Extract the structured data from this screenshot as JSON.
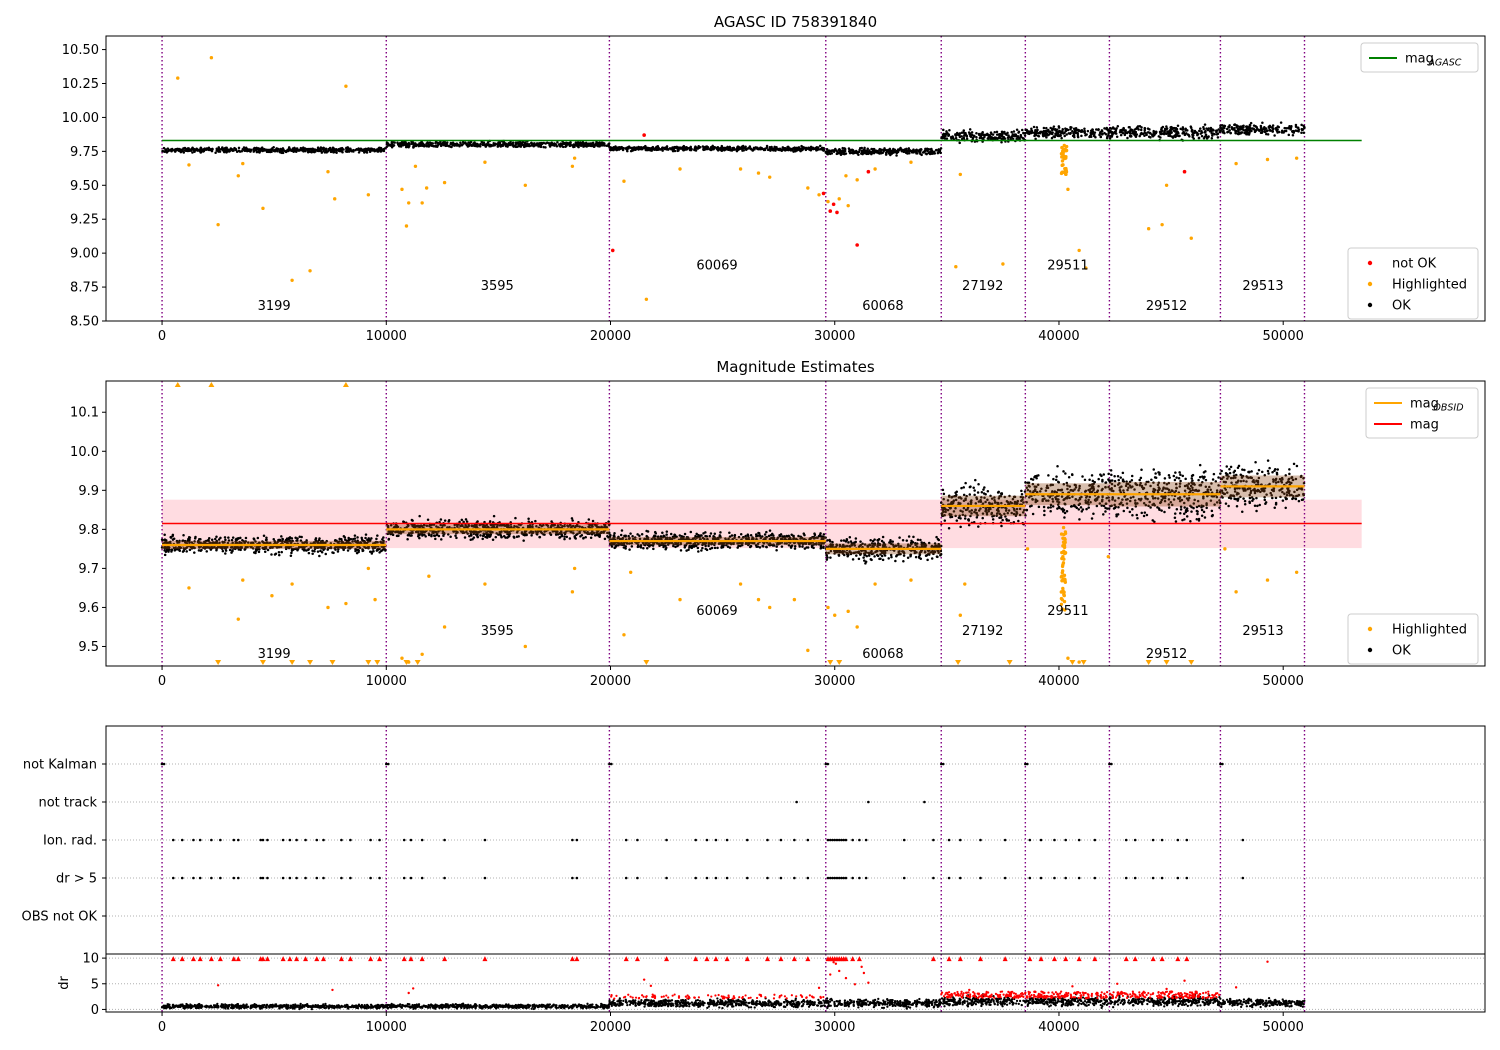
{
  "figure": {
    "colors": {
      "ok": "#000000",
      "highlighted": "#FFA500",
      "not_ok": "#FF0000",
      "agasc_line": "#008000",
      "obsid_line": "#FFA500",
      "mag_line": "#FF0000",
      "obs_boundary": "#800080",
      "band": "#FFC0C8"
    }
  },
  "chart_data": [
    {
      "id": "panel1",
      "type": "scatter",
      "title": "AGASC ID 758391840",
      "xlim": [
        -2500,
        59000
      ],
      "ylim": [
        8.5,
        10.6
      ],
      "xticks": [
        0,
        10000,
        20000,
        30000,
        40000,
        50000
      ],
      "yticks": [
        8.5,
        8.75,
        9.0,
        9.25,
        9.5,
        9.75,
        10.0,
        10.25,
        10.5
      ],
      "obs_boundaries": [
        0,
        10000,
        19950,
        29600,
        34750,
        38500,
        42250,
        47200,
        50950
      ],
      "obs_segments": [
        {
          "obsid": "3199",
          "x0": 0,
          "x1": 10000,
          "mag": 9.76
        },
        {
          "obsid": "3595",
          "x0": 10000,
          "x1": 19950,
          "mag": 9.8
        },
        {
          "obsid": "60069",
          "x0": 19950,
          "x1": 29600,
          "mag": 9.77
        },
        {
          "obsid": "60068",
          "x0": 29600,
          "x1": 34750,
          "mag": 9.75
        },
        {
          "obsid": "27192",
          "x0": 34750,
          "x1": 38500,
          "mag": 9.86
        },
        {
          "obsid": "29511",
          "x0": 38500,
          "x1": 42250,
          "mag": 9.89
        },
        {
          "obsid": "29512",
          "x0": 42250,
          "x1": 47200,
          "mag": 9.89
        },
        {
          "obsid": "29513",
          "x0": 47200,
          "x1": 50950,
          "mag": 9.91
        }
      ],
      "obs_labels": [
        {
          "text": "3199",
          "x": 5000,
          "y": 8.58
        },
        {
          "text": "3595",
          "x": 14950,
          "y": 8.73
        },
        {
          "text": "60069",
          "x": 24750,
          "y": 8.88
        },
        {
          "text": "60068",
          "x": 32150,
          "y": 8.58
        },
        {
          "text": "27192",
          "x": 36600,
          "y": 8.73
        },
        {
          "text": "29511",
          "x": 40400,
          "y": 8.88
        },
        {
          "text": "29512",
          "x": 44800,
          "y": 8.58
        },
        {
          "text": "29513",
          "x": 49100,
          "y": 8.73
        }
      ],
      "agasc_mag": 9.83,
      "legend_top": [
        {
          "label": "mag",
          "sub": "AGASC",
          "kind": "line",
          "color": "#008000"
        }
      ],
      "legend_bottom": [
        {
          "label": "not OK",
          "kind": "dot",
          "color": "#FF0000"
        },
        {
          "label": "Highlighted",
          "kind": "dot",
          "color": "#FFA500"
        },
        {
          "label": "OK",
          "kind": "dot",
          "color": "#000000"
        }
      ],
      "highlighted_points": [
        [
          700,
          10.29
        ],
        [
          2200,
          10.44
        ],
        [
          8200,
          10.23
        ],
        [
          1200,
          9.65
        ],
        [
          2500,
          9.21
        ],
        [
          3400,
          9.57
        ],
        [
          3600,
          9.66
        ],
        [
          4500,
          9.33
        ],
        [
          5800,
          8.8
        ],
        [
          6600,
          8.87
        ],
        [
          7400,
          9.6
        ],
        [
          7700,
          9.4
        ],
        [
          9200,
          9.43
        ],
        [
          10700,
          9.47
        ],
        [
          10900,
          9.2
        ],
        [
          11000,
          9.37
        ],
        [
          11300,
          9.64
        ],
        [
          11600,
          9.37
        ],
        [
          11800,
          9.48
        ],
        [
          12600,
          9.52
        ],
        [
          14400,
          9.67
        ],
        [
          16200,
          9.5
        ],
        [
          18300,
          9.64
        ],
        [
          18400,
          9.7
        ],
        [
          20600,
          9.53
        ],
        [
          21600,
          8.66
        ],
        [
          23100,
          9.62
        ],
        [
          25800,
          9.62
        ],
        [
          26600,
          9.59
        ],
        [
          27100,
          9.56
        ],
        [
          28800,
          9.48
        ],
        [
          29300,
          9.43
        ],
        [
          29700,
          9.38
        ],
        [
          30200,
          9.4
        ],
        [
          30500,
          9.57
        ],
        [
          30600,
          9.35
        ],
        [
          31000,
          9.54
        ],
        [
          31800,
          9.62
        ],
        [
          33400,
          9.67
        ],
        [
          35600,
          9.58
        ],
        [
          35400,
          8.9
        ],
        [
          37500,
          8.92
        ],
        [
          40400,
          9.47
        ],
        [
          40900,
          9.02
        ],
        [
          41200,
          8.89
        ],
        [
          44000,
          9.18
        ],
        [
          44600,
          9.21
        ],
        [
          44800,
          9.5
        ],
        [
          45900,
          9.11
        ],
        [
          47900,
          9.66
        ],
        [
          49300,
          9.69
        ],
        [
          50600,
          9.7
        ]
      ],
      "highlighted_clusters": [
        {
          "x0": 40100,
          "x1": 40350,
          "y0": 9.58,
          "y1": 9.8,
          "n": 40
        }
      ],
      "not_ok_points": [
        [
          21500,
          9.87
        ],
        [
          20100,
          9.02
        ],
        [
          29800,
          9.31
        ],
        [
          29500,
          9.44
        ],
        [
          29950,
          9.36
        ],
        [
          30100,
          9.3
        ],
        [
          31000,
          9.06
        ],
        [
          31500,
          9.6
        ],
        [
          45600,
          9.6
        ]
      ],
      "ok_bands": [
        {
          "x0": 0,
          "x1": 10000,
          "c": 9.76,
          "h": 0.025
        },
        {
          "x0": 10000,
          "x1": 19950,
          "c": 9.8,
          "h": 0.03
        },
        {
          "x0": 19950,
          "x1": 29600,
          "c": 9.77,
          "h": 0.025
        },
        {
          "x0": 29600,
          "x1": 34750,
          "c": 9.75,
          "h": 0.035
        },
        {
          "x0": 34750,
          "x1": 38500,
          "c": 9.86,
          "h": 0.06
        },
        {
          "x0": 38500,
          "x1": 42250,
          "c": 9.89,
          "h": 0.06
        },
        {
          "x0": 42250,
          "x1": 47200,
          "c": 9.89,
          "h": 0.07
        },
        {
          "x0": 47200,
          "x1": 50950,
          "c": 9.91,
          "h": 0.06
        }
      ]
    },
    {
      "id": "panel2",
      "type": "scatter",
      "title": "Magnitude Estimates",
      "xlim": [
        -2500,
        59000
      ],
      "ylim": [
        9.45,
        10.18
      ],
      "xticks": [
        0,
        10000,
        20000,
        30000,
        40000,
        50000
      ],
      "yticks": [
        9.5,
        9.6,
        9.7,
        9.8,
        9.9,
        10.0,
        10.1
      ],
      "mag": 9.815,
      "mag_band": [
        9.752,
        9.876
      ],
      "obs_labels": [
        {
          "text": "3199",
          "x": 5000,
          "y": 9.47
        },
        {
          "text": "3595",
          "x": 14950,
          "y": 9.53
        },
        {
          "text": "60069",
          "x": 24750,
          "y": 9.58
        },
        {
          "text": "60068",
          "x": 32150,
          "y": 9.47
        },
        {
          "text": "27192",
          "x": 36600,
          "y": 9.53
        },
        {
          "text": "29511",
          "x": 40400,
          "y": 9.58
        },
        {
          "text": "29512",
          "x": 44800,
          "y": 9.47
        },
        {
          "text": "29513",
          "x": 49100,
          "y": 9.53
        }
      ],
      "legend_top": [
        {
          "label": "mag",
          "sub": "OBSID",
          "kind": "line",
          "color": "#FFA500"
        },
        {
          "label": "mag",
          "sub": "",
          "kind": "line",
          "color": "#FF0000"
        }
      ],
      "legend_bottom": [
        {
          "label": "Highlighted",
          "kind": "dot",
          "color": "#FFA500"
        },
        {
          "label": "OK",
          "kind": "dot",
          "color": "#000000"
        }
      ],
      "highlighted_points": [
        [
          1200,
          9.65
        ],
        [
          3400,
          9.57
        ],
        [
          3600,
          9.67
        ],
        [
          4900,
          9.63
        ],
        [
          5800,
          9.66
        ],
        [
          7400,
          9.6
        ],
        [
          8200,
          9.61
        ],
        [
          9200,
          9.7
        ],
        [
          9500,
          9.62
        ],
        [
          10700,
          9.47
        ],
        [
          11000,
          9.46
        ],
        [
          11600,
          9.48
        ],
        [
          11900,
          9.68
        ],
        [
          12600,
          9.55
        ],
        [
          14400,
          9.66
        ],
        [
          16200,
          9.5
        ],
        [
          18300,
          9.64
        ],
        [
          18400,
          9.7
        ],
        [
          20600,
          9.53
        ],
        [
          20900,
          9.69
        ],
        [
          23100,
          9.62
        ],
        [
          25800,
          9.66
        ],
        [
          26600,
          9.62
        ],
        [
          27100,
          9.6
        ],
        [
          28200,
          9.62
        ],
        [
          28800,
          9.49
        ],
        [
          29700,
          9.6
        ],
        [
          30000,
          9.58
        ],
        [
          30600,
          9.59
        ],
        [
          31000,
          9.55
        ],
        [
          31800,
          9.66
        ],
        [
          33400,
          9.67
        ],
        [
          35600,
          9.58
        ],
        [
          35800,
          9.66
        ],
        [
          38600,
          9.75
        ],
        [
          40400,
          9.47
        ],
        [
          40900,
          9.46
        ],
        [
          42200,
          9.73
        ],
        [
          47400,
          9.75
        ],
        [
          47900,
          9.64
        ],
        [
          49300,
          9.67
        ],
        [
          50600,
          9.69
        ]
      ],
      "highlighted_clusters": [
        {
          "x0": 40100,
          "x1": 40300,
          "y0": 9.59,
          "y1": 9.81,
          "n": 50
        }
      ],
      "triangles_top": [
        700,
        2200,
        8200
      ],
      "triangles_bottom": [
        2500,
        4500,
        5800,
        6600,
        7600,
        9200,
        9600,
        10900,
        11400,
        21600,
        29800,
        30200,
        35500,
        37800,
        40600,
        41100,
        44000,
        44800,
        45900
      ],
      "ok_bands": [
        {
          "x0": 0,
          "x1": 10000,
          "c": 9.76,
          "h": 0.03
        },
        {
          "x0": 10000,
          "x1": 19950,
          "c": 9.8,
          "h": 0.035
        },
        {
          "x0": 19950,
          "x1": 29600,
          "c": 9.77,
          "h": 0.03
        },
        {
          "x0": 29600,
          "x1": 34750,
          "c": 9.75,
          "h": 0.04
        },
        {
          "x0": 34750,
          "x1": 38500,
          "c": 9.86,
          "h": 0.075
        },
        {
          "x0": 38500,
          "x1": 42250,
          "c": 9.89,
          "h": 0.08
        },
        {
          "x0": 42250,
          "x1": 47200,
          "c": 9.89,
          "h": 0.09
        },
        {
          "x0": 47200,
          "x1": 50950,
          "c": 9.91,
          "h": 0.08
        }
      ]
    },
    {
      "id": "panel3",
      "type": "scatter",
      "xlim": [
        -2500,
        59000
      ],
      "categories": [
        "not Kalman",
        "not track",
        "Ion. rad.",
        "dr > 5",
        "OBS not OK"
      ],
      "not_kalman_x": [
        0,
        10000,
        19950,
        29600,
        34750,
        38500,
        42250,
        47200
      ],
      "not_track_x": [
        28300,
        31500,
        34000
      ],
      "flag_x": [
        500,
        900,
        1400,
        1700,
        2200,
        2600,
        3200,
        3400,
        4400,
        4500,
        4700,
        5400,
        5700,
        6000,
        6400,
        6900,
        7200,
        8000,
        8400,
        9300,
        9700,
        10800,
        11100,
        11600,
        12600,
        14400,
        18300,
        18500,
        20700,
        21200,
        22500,
        23800,
        24300,
        24700,
        25200,
        26100,
        27000,
        27600,
        28200,
        28800,
        29700,
        29800,
        29900,
        30000,
        30100,
        30200,
        30300,
        30400,
        30500,
        30800,
        31100,
        31400,
        33100,
        34400,
        35100,
        35600,
        36500,
        37600,
        38700,
        39200,
        39800,
        40300,
        40900,
        41600,
        43000,
        43400,
        44200,
        44600,
        45300,
        45700,
        48200
      ]
    },
    {
      "id": "panel4",
      "type": "scatter",
      "ylabel": "dr",
      "xlim": [
        -2500,
        59000
      ],
      "ylim": [
        -0.5,
        10.8
      ],
      "yticks": [
        0,
        5,
        10
      ],
      "xticks": [
        0,
        10000,
        20000,
        30000,
        40000,
        50000
      ],
      "red_high_x": [
        500,
        900,
        1400,
        1700,
        2200,
        2600,
        3200,
        3400,
        4400,
        4500,
        4700,
        5400,
        5700,
        6000,
        6400,
        6900,
        7200,
        8000,
        8400,
        9300,
        9700,
        10800,
        11100,
        11600,
        12600,
        14400,
        18300,
        18500,
        20700,
        21200,
        22500,
        23800,
        24300,
        24700,
        25200,
        26100,
        27000,
        27600,
        28200,
        28800,
        29700,
        29800,
        29900,
        30000,
        30100,
        30200,
        30300,
        30400,
        30500,
        30800,
        31100,
        34400,
        35100,
        35600,
        36500,
        37600,
        38700,
        39200,
        39800,
        40300,
        40900,
        41600,
        43000,
        43400,
        44200,
        44600,
        45300,
        45700
      ],
      "red_mid_points": [
        [
          2500,
          4.7
        ],
        [
          7600,
          3.8
        ],
        [
          11000,
          3.2
        ],
        [
          11200,
          4.1
        ],
        [
          21500,
          5.8
        ],
        [
          21800,
          4.6
        ],
        [
          29300,
          4.2
        ],
        [
          29800,
          6.8
        ],
        [
          30200,
          7.5
        ],
        [
          30500,
          6.1
        ],
        [
          30900,
          4.9
        ],
        [
          31200,
          8.3
        ],
        [
          31300,
          7.1
        ],
        [
          31500,
          5.2
        ],
        [
          30050,
          8.9
        ],
        [
          29950,
          9.2
        ],
        [
          36000,
          3.8
        ],
        [
          40600,
          4.5
        ],
        [
          42600,
          5.0
        ],
        [
          44800,
          4.0
        ],
        [
          45600,
          5.6
        ],
        [
          49300,
          9.3
        ],
        [
          47900,
          4.3
        ]
      ],
      "ok_bands": [
        {
          "x0": 0,
          "x1": 10000,
          "c": 0.6,
          "h": 0.6
        },
        {
          "x0": 10000,
          "x1": 19950,
          "c": 0.6,
          "h": 0.6
        },
        {
          "x0": 19950,
          "x1": 29600,
          "c": 1.2,
          "h": 1.1
        },
        {
          "x0": 29600,
          "x1": 34750,
          "c": 1.2,
          "h": 1.1
        },
        {
          "x0": 34750,
          "x1": 47200,
          "c": 1.6,
          "h": 1.4
        },
        {
          "x0": 47200,
          "x1": 50950,
          "c": 1.3,
          "h": 1.1
        }
      ]
    }
  ]
}
